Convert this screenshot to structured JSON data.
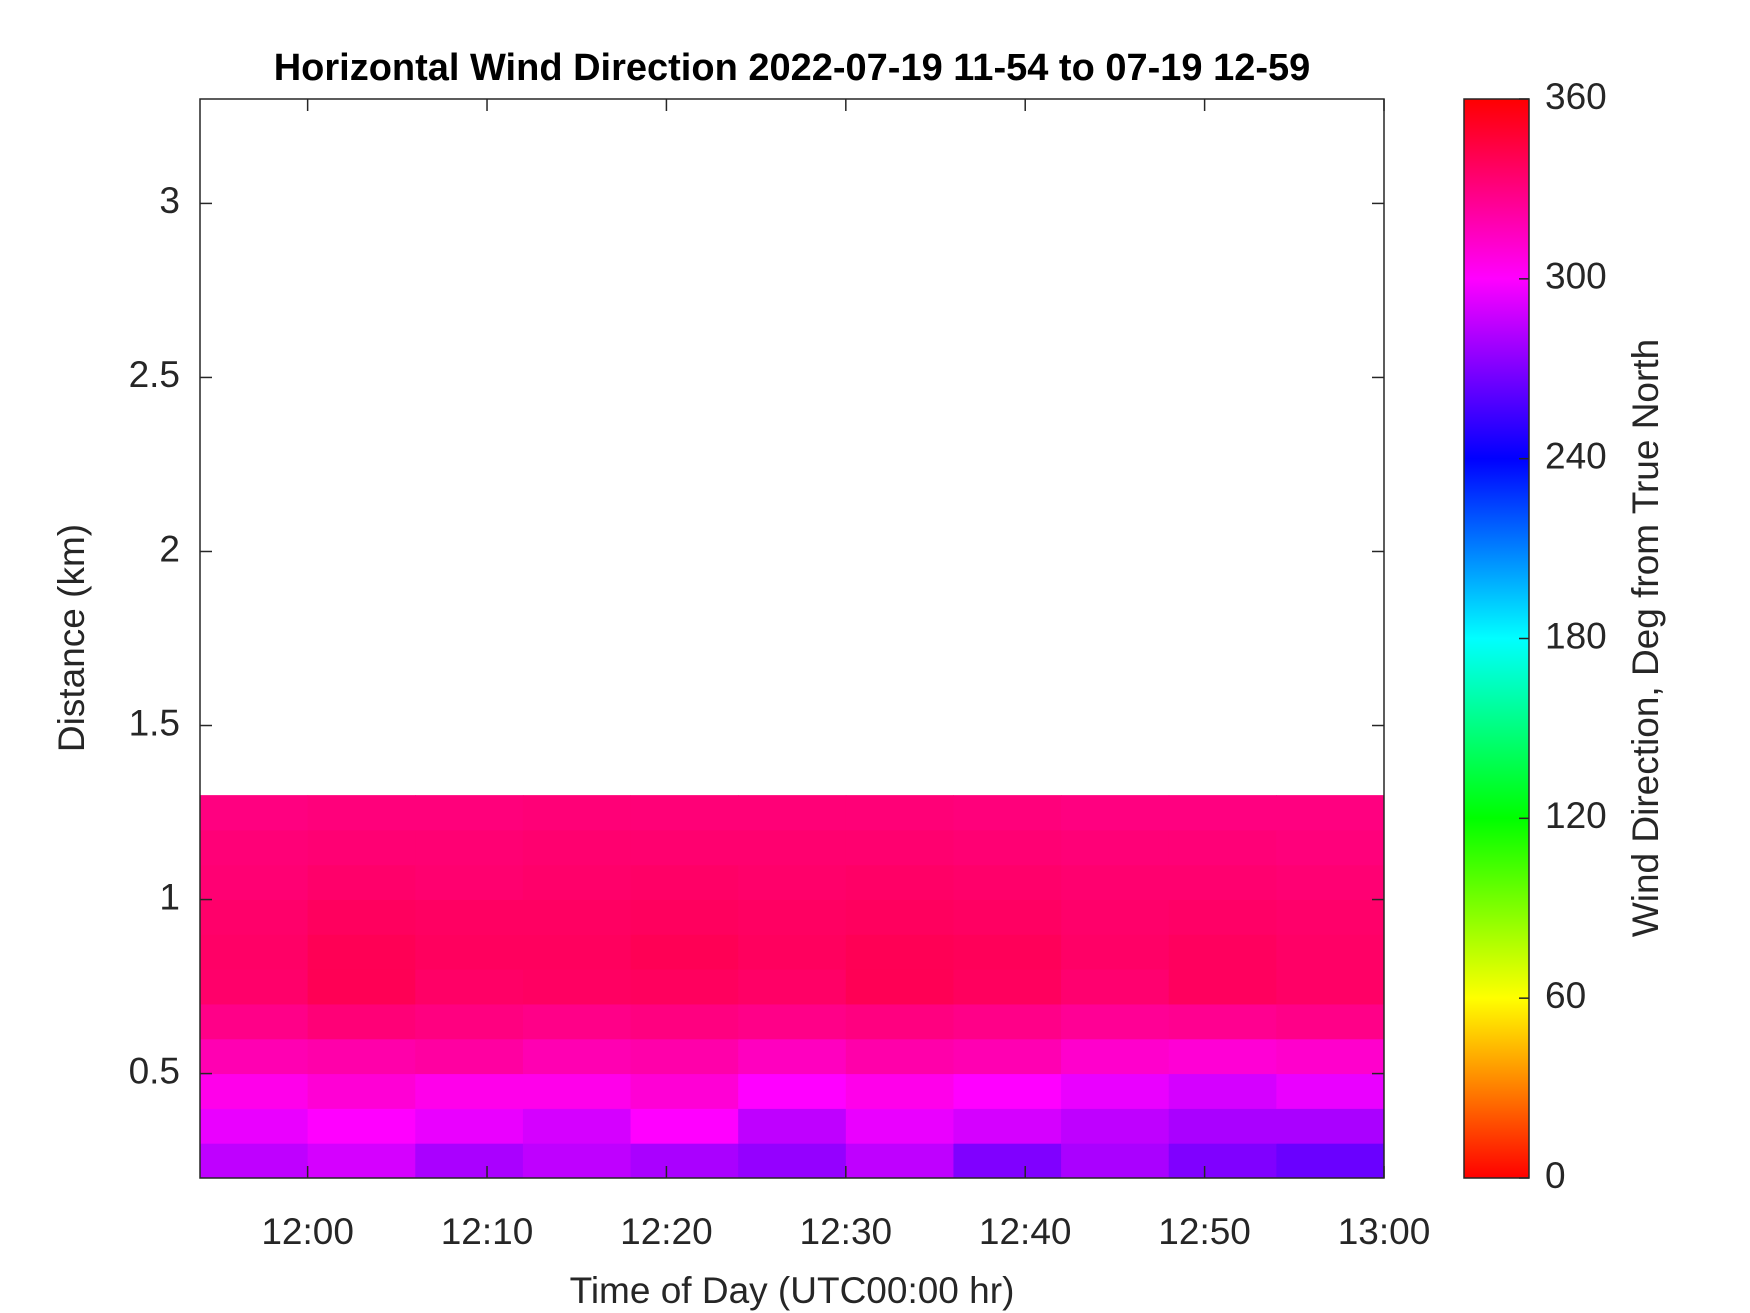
{
  "chart_data": {
    "type": "heatmap",
    "title": "Horizontal Wind Direction 2022-07-19 11-54 to 07-19 12-59",
    "x_label": "Time of Day (UTC00:00 hr)",
    "y_label": "Distance (km)",
    "colorbar_label": "Wind Direction, Deg from True North",
    "colormap": "hsv",
    "xlim": [
      714,
      780
    ],
    "xticks": [
      {
        "value": 720,
        "label": "12:00"
      },
      {
        "value": 730,
        "label": "12:10"
      },
      {
        "value": 740,
        "label": "12:20"
      },
      {
        "value": 750,
        "label": "12:30"
      },
      {
        "value": 760,
        "label": "12:40"
      },
      {
        "value": 770,
        "label": "12:50"
      },
      {
        "value": 780,
        "label": "13:00"
      }
    ],
    "ylim": [
      0.2,
      3.3
    ],
    "yticks": [
      0.5,
      1,
      1.5,
      2,
      2.5,
      3
    ],
    "clim": [
      0,
      360
    ],
    "cticks": [
      0,
      60,
      120,
      180,
      240,
      300,
      360
    ],
    "x_edges": [
      714,
      720,
      726,
      732,
      738,
      744,
      750,
      756,
      762,
      768,
      774,
      780
    ],
    "y_edges": [
      0.2,
      0.3,
      0.4,
      0.5,
      0.6,
      0.7,
      0.8,
      0.9,
      1.0,
      1.1,
      1.2,
      1.3
    ],
    "values": [
      [
        285,
        290,
        280,
        285,
        280,
        275,
        285,
        270,
        280,
        270,
        265
      ],
      [
        295,
        300,
        295,
        290,
        300,
        285,
        295,
        290,
        285,
        280,
        280
      ],
      [
        305,
        310,
        305,
        305,
        310,
        300,
        305,
        300,
        295,
        290,
        295
      ],
      [
        318,
        320,
        322,
        318,
        320,
        315,
        320,
        318,
        312,
        310,
        312
      ],
      [
        328,
        332,
        330,
        328,
        330,
        328,
        330,
        328,
        325,
        326,
        328
      ],
      [
        335,
        340,
        336,
        337,
        338,
        336,
        340,
        338,
        334,
        338,
        336
      ],
      [
        336,
        340,
        338,
        338,
        340,
        338,
        340,
        339,
        336,
        338,
        336
      ],
      [
        335,
        338,
        337,
        337,
        338,
        337,
        338,
        337,
        335,
        336,
        335
      ],
      [
        333,
        335,
        334,
        335,
        336,
        335,
        336,
        335,
        334,
        334,
        333
      ],
      [
        332,
        333,
        333,
        334,
        334,
        334,
        334,
        333,
        332,
        332,
        331
      ],
      [
        330,
        331,
        331,
        332,
        332,
        332,
        332,
        331,
        330,
        330,
        330
      ]
    ]
  }
}
